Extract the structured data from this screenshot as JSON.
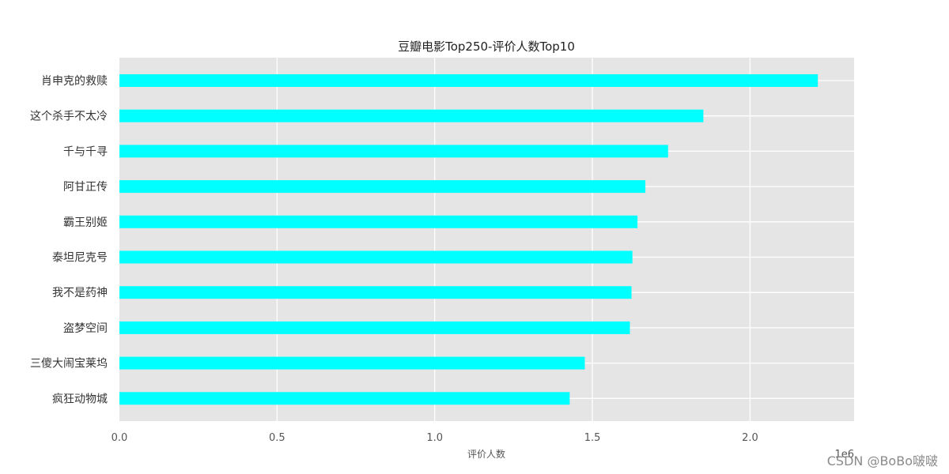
{
  "chart_data": {
    "type": "bar",
    "orientation": "horizontal",
    "title": "豆瓣电影Top250-评价人数Top10",
    "xlabel": "评价人数",
    "ylabel": "",
    "x_offset_text": "1e6",
    "xlim": [
      0,
      2330000
    ],
    "xticks": [
      0,
      500000,
      1000000,
      1500000,
      2000000
    ],
    "xtick_labels": [
      "0.0",
      "0.5",
      "1.0",
      "1.5",
      "2.0"
    ],
    "grid": true,
    "bar_color": "#00FFFF",
    "background_color": "#E5E5E5",
    "categories": [
      "肖申克的救赎",
      "这个杀手不太冷",
      "千与千寻",
      "阿甘正传",
      "霸王别姬",
      "泰坦尼克号",
      "我不是药神",
      "盗梦空间",
      "三傻大闹宝莱坞",
      "疯狂动物城"
    ],
    "values": [
      2215000,
      1852000,
      1740000,
      1668000,
      1643000,
      1627000,
      1624000,
      1619000,
      1476000,
      1428000
    ]
  },
  "watermark": "CSDN @BoBo啵啵"
}
